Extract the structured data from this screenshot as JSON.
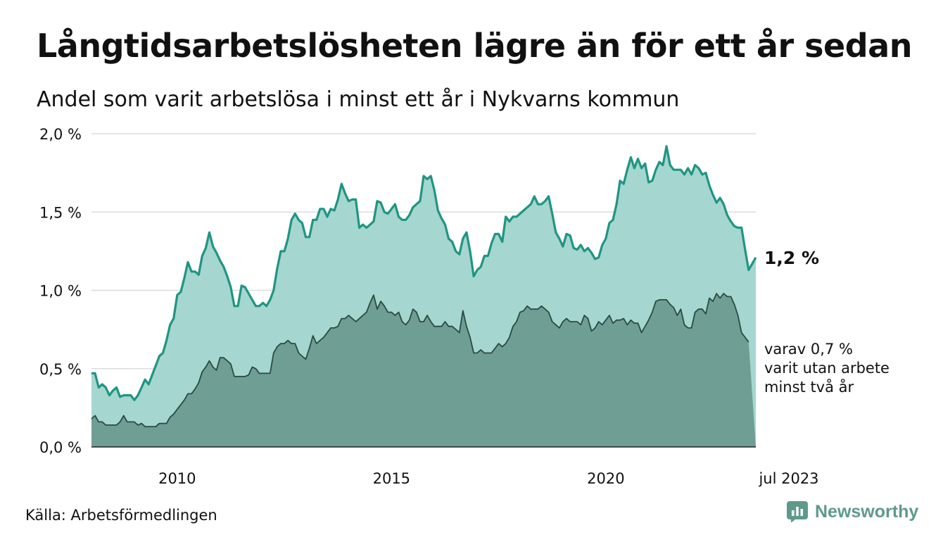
{
  "title": "Långtidsarbetslösheten lägre än för ett år sedan",
  "subtitle": "Andel som varit arbetslösa i minst ett år i Nykvarns kommun",
  "source": "Källa: Arbetsförmedlingen",
  "brand": {
    "name": "Newsworthy",
    "icon": "newsworthy-logo-icon"
  },
  "colors": {
    "total_line": "#1f9582",
    "total_fill": "#a5d6cf",
    "twoyear_line": "#2b4a44",
    "twoyear_fill": "#6e9e94",
    "grid": "#dddddd",
    "axis": "#222222",
    "brand": "#5e9a8c"
  },
  "chart_data": {
    "type": "area",
    "x_unit": "year",
    "x_start": 2008.0,
    "x_end": 2023.5,
    "step": 0.0833,
    "ylim": [
      0,
      2.0
    ],
    "yticks": [
      {
        "value": 0.0,
        "label": "0,0 %"
      },
      {
        "value": 0.5,
        "label": "0,5 %"
      },
      {
        "value": 1.0,
        "label": "1,0 %"
      },
      {
        "value": 1.5,
        "label": "1,5 %"
      },
      {
        "value": 2.0,
        "label": "2,0 %"
      }
    ],
    "xticks": [
      {
        "value": 2010,
        "label": "2010"
      },
      {
        "value": 2015,
        "label": "2015"
      },
      {
        "value": 2020,
        "label": "2020"
      },
      {
        "value": 2023.5,
        "label": "jul 2023"
      }
    ],
    "grid": true,
    "series": [
      {
        "name": "minst ett år",
        "end_label": "1,2 %",
        "values": [
          0.47,
          0.47,
          0.38,
          0.4,
          0.38,
          0.33,
          0.36,
          0.38,
          0.32,
          0.33,
          0.33,
          0.33,
          0.3,
          0.33,
          0.38,
          0.43,
          0.4,
          0.46,
          0.52,
          0.58,
          0.6,
          0.68,
          0.78,
          0.82,
          0.97,
          0.99,
          1.08,
          1.18,
          1.12,
          1.12,
          1.1,
          1.22,
          1.27,
          1.37,
          1.28,
          1.24,
          1.19,
          1.15,
          1.09,
          1.02,
          0.9,
          0.9,
          1.03,
          1.02,
          0.98,
          0.94,
          0.9,
          0.9,
          0.92,
          0.9,
          0.94,
          1.0,
          1.14,
          1.25,
          1.25,
          1.33,
          1.45,
          1.49,
          1.45,
          1.43,
          1.34,
          1.34,
          1.45,
          1.45,
          1.52,
          1.52,
          1.47,
          1.52,
          1.51,
          1.58,
          1.68,
          1.62,
          1.57,
          1.58,
          1.58,
          1.4,
          1.42,
          1.4,
          1.42,
          1.44,
          1.57,
          1.56,
          1.5,
          1.49,
          1.52,
          1.55,
          1.47,
          1.45,
          1.45,
          1.48,
          1.53,
          1.55,
          1.57,
          1.73,
          1.71,
          1.73,
          1.64,
          1.51,
          1.46,
          1.42,
          1.33,
          1.31,
          1.25,
          1.23,
          1.33,
          1.37,
          1.25,
          1.09,
          1.13,
          1.15,
          1.22,
          1.22,
          1.3,
          1.36,
          1.36,
          1.31,
          1.47,
          1.44,
          1.47,
          1.47,
          1.49,
          1.51,
          1.53,
          1.55,
          1.6,
          1.55,
          1.55,
          1.57,
          1.6,
          1.49,
          1.37,
          1.33,
          1.28,
          1.36,
          1.35,
          1.27,
          1.26,
          1.29,
          1.25,
          1.27,
          1.24,
          1.2,
          1.21,
          1.29,
          1.33,
          1.43,
          1.45,
          1.55,
          1.7,
          1.68,
          1.77,
          1.85,
          1.78,
          1.84,
          1.78,
          1.81,
          1.69,
          1.7,
          1.77,
          1.82,
          1.8,
          1.92,
          1.8,
          1.77,
          1.77,
          1.77,
          1.74,
          1.78,
          1.74,
          1.8,
          1.78,
          1.74,
          1.75,
          1.67,
          1.61,
          1.56,
          1.59,
          1.55,
          1.48,
          1.44,
          1.41,
          1.4,
          1.4,
          1.26,
          1.13,
          1.17,
          1.21
        ]
      },
      {
        "name": "minst två år",
        "end_label": [
          "varav 0,7 %",
          "varit utan arbete",
          "minst två år"
        ],
        "values": [
          0.18,
          0.2,
          0.16,
          0.16,
          0.14,
          0.14,
          0.14,
          0.14,
          0.16,
          0.2,
          0.16,
          0.16,
          0.16,
          0.14,
          0.15,
          0.13,
          0.13,
          0.13,
          0.13,
          0.15,
          0.15,
          0.15,
          0.19,
          0.21,
          0.24,
          0.27,
          0.3,
          0.34,
          0.34,
          0.37,
          0.41,
          0.48,
          0.51,
          0.55,
          0.51,
          0.49,
          0.57,
          0.57,
          0.55,
          0.53,
          0.45,
          0.45,
          0.45,
          0.45,
          0.46,
          0.51,
          0.5,
          0.47,
          0.47,
          0.47,
          0.47,
          0.6,
          0.64,
          0.66,
          0.66,
          0.68,
          0.66,
          0.66,
          0.6,
          0.58,
          0.56,
          0.63,
          0.71,
          0.66,
          0.68,
          0.7,
          0.73,
          0.76,
          0.76,
          0.77,
          0.82,
          0.82,
          0.84,
          0.82,
          0.8,
          0.82,
          0.84,
          0.86,
          0.92,
          0.97,
          0.88,
          0.93,
          0.9,
          0.86,
          0.86,
          0.84,
          0.86,
          0.8,
          0.78,
          0.81,
          0.88,
          0.86,
          0.8,
          0.8,
          0.84,
          0.8,
          0.77,
          0.77,
          0.77,
          0.8,
          0.77,
          0.77,
          0.75,
          0.73,
          0.87,
          0.77,
          0.7,
          0.6,
          0.6,
          0.62,
          0.6,
          0.6,
          0.6,
          0.63,
          0.66,
          0.64,
          0.66,
          0.7,
          0.77,
          0.8,
          0.86,
          0.87,
          0.9,
          0.88,
          0.88,
          0.88,
          0.9,
          0.88,
          0.86,
          0.8,
          0.78,
          0.76,
          0.8,
          0.82,
          0.8,
          0.8,
          0.8,
          0.78,
          0.84,
          0.82,
          0.74,
          0.76,
          0.8,
          0.78,
          0.81,
          0.84,
          0.79,
          0.81,
          0.81,
          0.82,
          0.78,
          0.81,
          0.79,
          0.79,
          0.73,
          0.77,
          0.81,
          0.86,
          0.93,
          0.94,
          0.94,
          0.94,
          0.91,
          0.89,
          0.84,
          0.88,
          0.78,
          0.76,
          0.76,
          0.86,
          0.88,
          0.88,
          0.85,
          0.95,
          0.93,
          0.98,
          0.95,
          0.98,
          0.96,
          0.96,
          0.91,
          0.84,
          0.73,
          0.7,
          0.67
        ]
      }
    ]
  }
}
